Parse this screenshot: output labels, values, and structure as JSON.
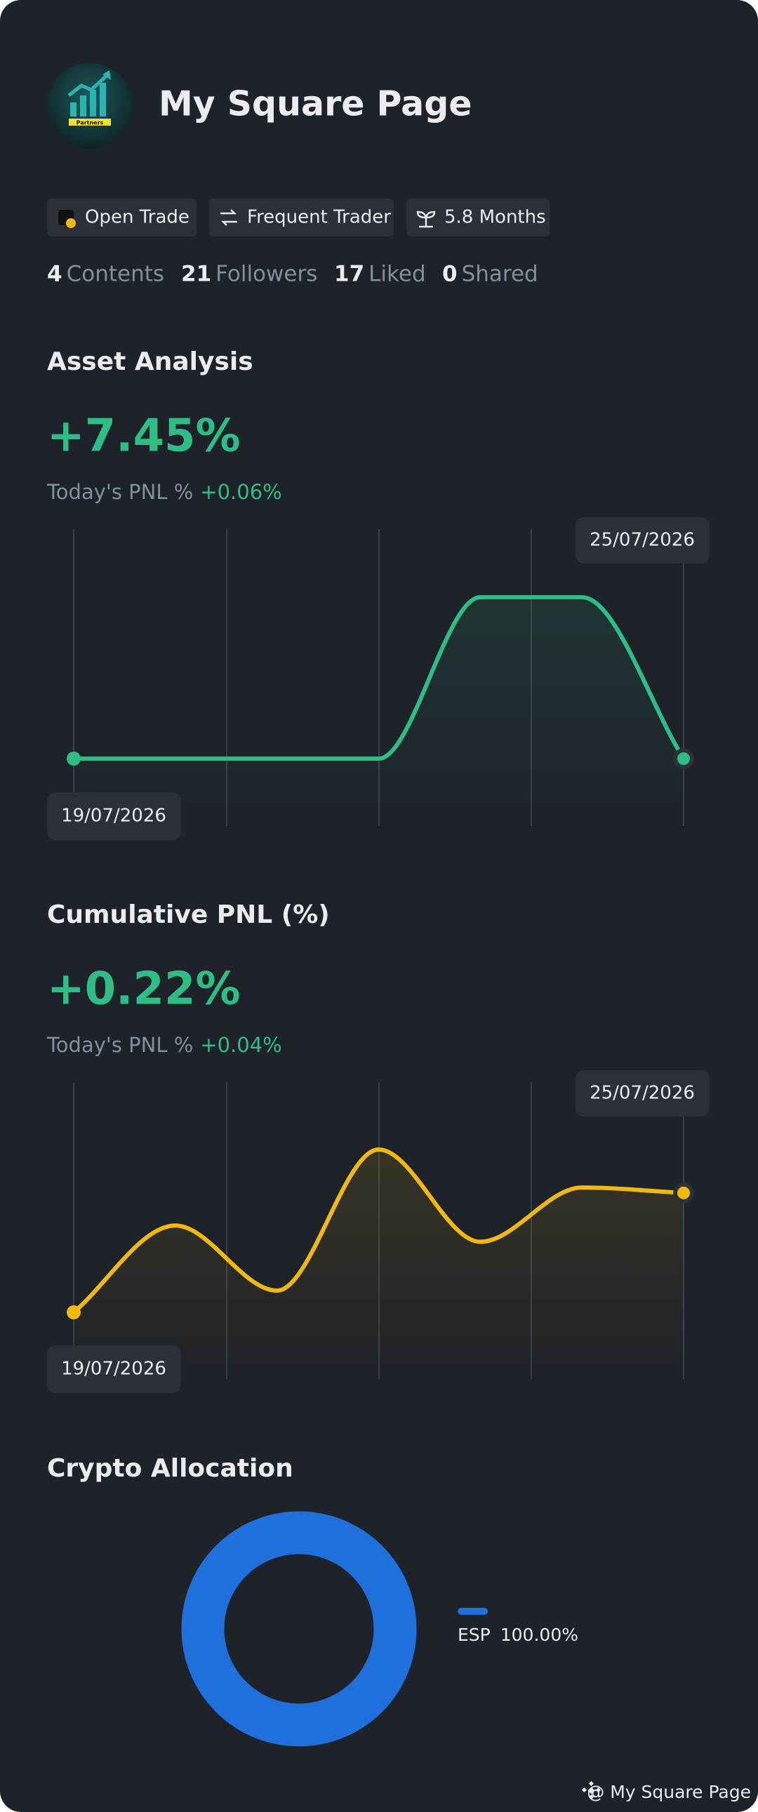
{
  "header": {
    "title": "My Square Page",
    "avatar_text": "Partners"
  },
  "badges": [
    "Open Trade",
    "Frequent Trader",
    "5.8 Months"
  ],
  "stats": [
    {
      "value": 4,
      "label": "Contents"
    },
    {
      "value": 21,
      "label": "Followers"
    },
    {
      "value": 17,
      "label": "Liked"
    },
    {
      "value": 0,
      "label": "Shared"
    }
  ],
  "asset_analysis": {
    "title": "Asset Analysis",
    "value": "+7.45%",
    "today_label": "Today's PNL %",
    "today_value": "+0.06%",
    "start_date": "19/07/2026",
    "end_date": "25/07/2026",
    "color": "#2ebd85",
    "values": [
      0,
      0,
      0,
      0,
      1,
      1,
      0
    ]
  },
  "cumulative_pnl": {
    "title": "Cumulative PNL (%)",
    "value": "+0.22%",
    "today_label": "Today's PNL %",
    "today_value": "+0.04%",
    "start_date": "19/07/2026",
    "end_date": "25/07/2026",
    "color": "#f0b90b",
    "values": [
      0,
      0.16,
      0.04,
      0.3,
      0.13,
      0.23,
      0.22
    ]
  },
  "crypto_allocation": {
    "title": "Crypto Allocation",
    "items": [
      {
        "name": "ESP",
        "value": 100,
        "label": "100.00%",
        "color": "#1f6fdc"
      }
    ]
  },
  "footer": "@ My Square Page"
}
